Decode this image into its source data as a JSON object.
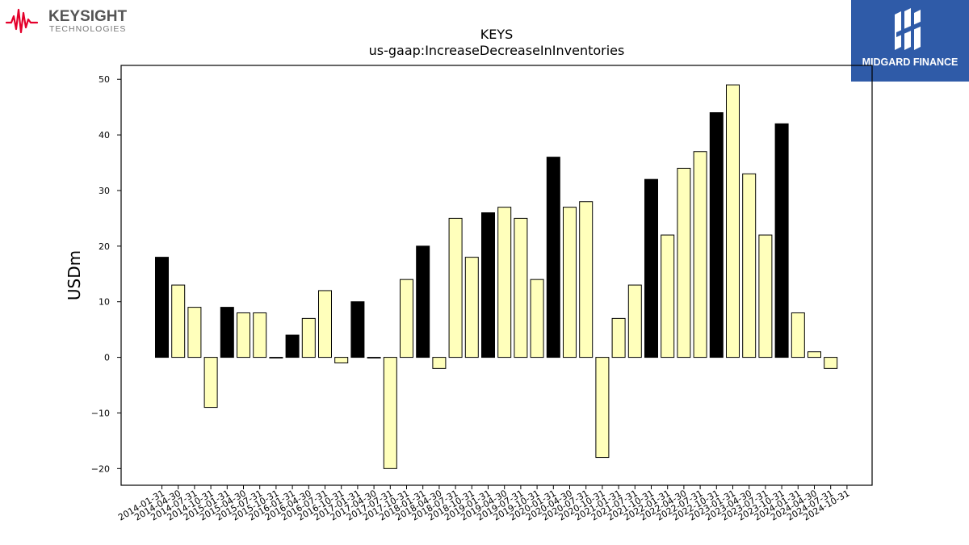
{
  "logos": {
    "left": {
      "name": "KEYSIGHT",
      "sub": "TECHNOLOGIES",
      "color": "#e4002b"
    },
    "right": {
      "name": "MIDGARD FINANCE",
      "color": "#2f5ba8"
    }
  },
  "chart_data": {
    "type": "bar",
    "title": "KEYS",
    "subtitle": "us-gaap:IncreaseDecreaseInInventories",
    "ylabel": "USDm",
    "xlabel": "",
    "ylim": [
      -23,
      52.5
    ],
    "yticks": [
      -20,
      -10,
      0,
      10,
      20,
      30,
      40,
      50
    ],
    "grid": false,
    "categories": [
      "2014-01-31",
      "2014-04-30",
      "2014-07-31",
      "2014-10-31",
      "2015-01-31",
      "2015-04-30",
      "2015-07-31",
      "2015-10-31",
      "2016-01-31",
      "2016-04-30",
      "2016-07-31",
      "2016-10-31",
      "2017-01-31",
      "2017-04-30",
      "2017-07-31",
      "2017-10-31",
      "2018-01-31",
      "2018-04-30",
      "2018-07-31",
      "2018-10-31",
      "2019-01-31",
      "2019-04-30",
      "2019-07-31",
      "2019-10-31",
      "2020-01-31",
      "2020-04-30",
      "2020-07-31",
      "2020-10-31",
      "2021-01-31",
      "2021-07-31",
      "2021-10-31",
      "2022-01-31",
      "2022-04-30",
      "2022-07-31",
      "2022-10-31",
      "2023-01-31",
      "2023-04-30",
      "2023-07-31",
      "2023-10-31",
      "2024-01-31",
      "2024-04-30",
      "2024-07-31",
      "2024-10-31"
    ],
    "values": [
      18,
      13,
      9,
      -9,
      9,
      8,
      8,
      0,
      4,
      7,
      12,
      -1,
      10,
      0,
      -20,
      14,
      20,
      -2,
      25,
      18,
      26,
      27,
      25,
      14,
      36,
      27,
      28,
      -18,
      7,
      13,
      32,
      22,
      34,
      37,
      44,
      49,
      33,
      22,
      42,
      8,
      1,
      -2,
      null
    ],
    "fiscal_year_end": [
      true,
      false,
      false,
      false,
      true,
      false,
      false,
      false,
      true,
      false,
      false,
      false,
      true,
      false,
      false,
      false,
      true,
      false,
      false,
      false,
      true,
      false,
      false,
      false,
      true,
      false,
      false,
      false,
      false,
      false,
      true,
      false,
      false,
      false,
      true,
      false,
      false,
      false,
      true,
      false,
      false,
      false,
      false
    ],
    "colors": {
      "fy_bar": "#000000",
      "q_bar": "#ffffbb",
      "edge": "#000000"
    }
  }
}
